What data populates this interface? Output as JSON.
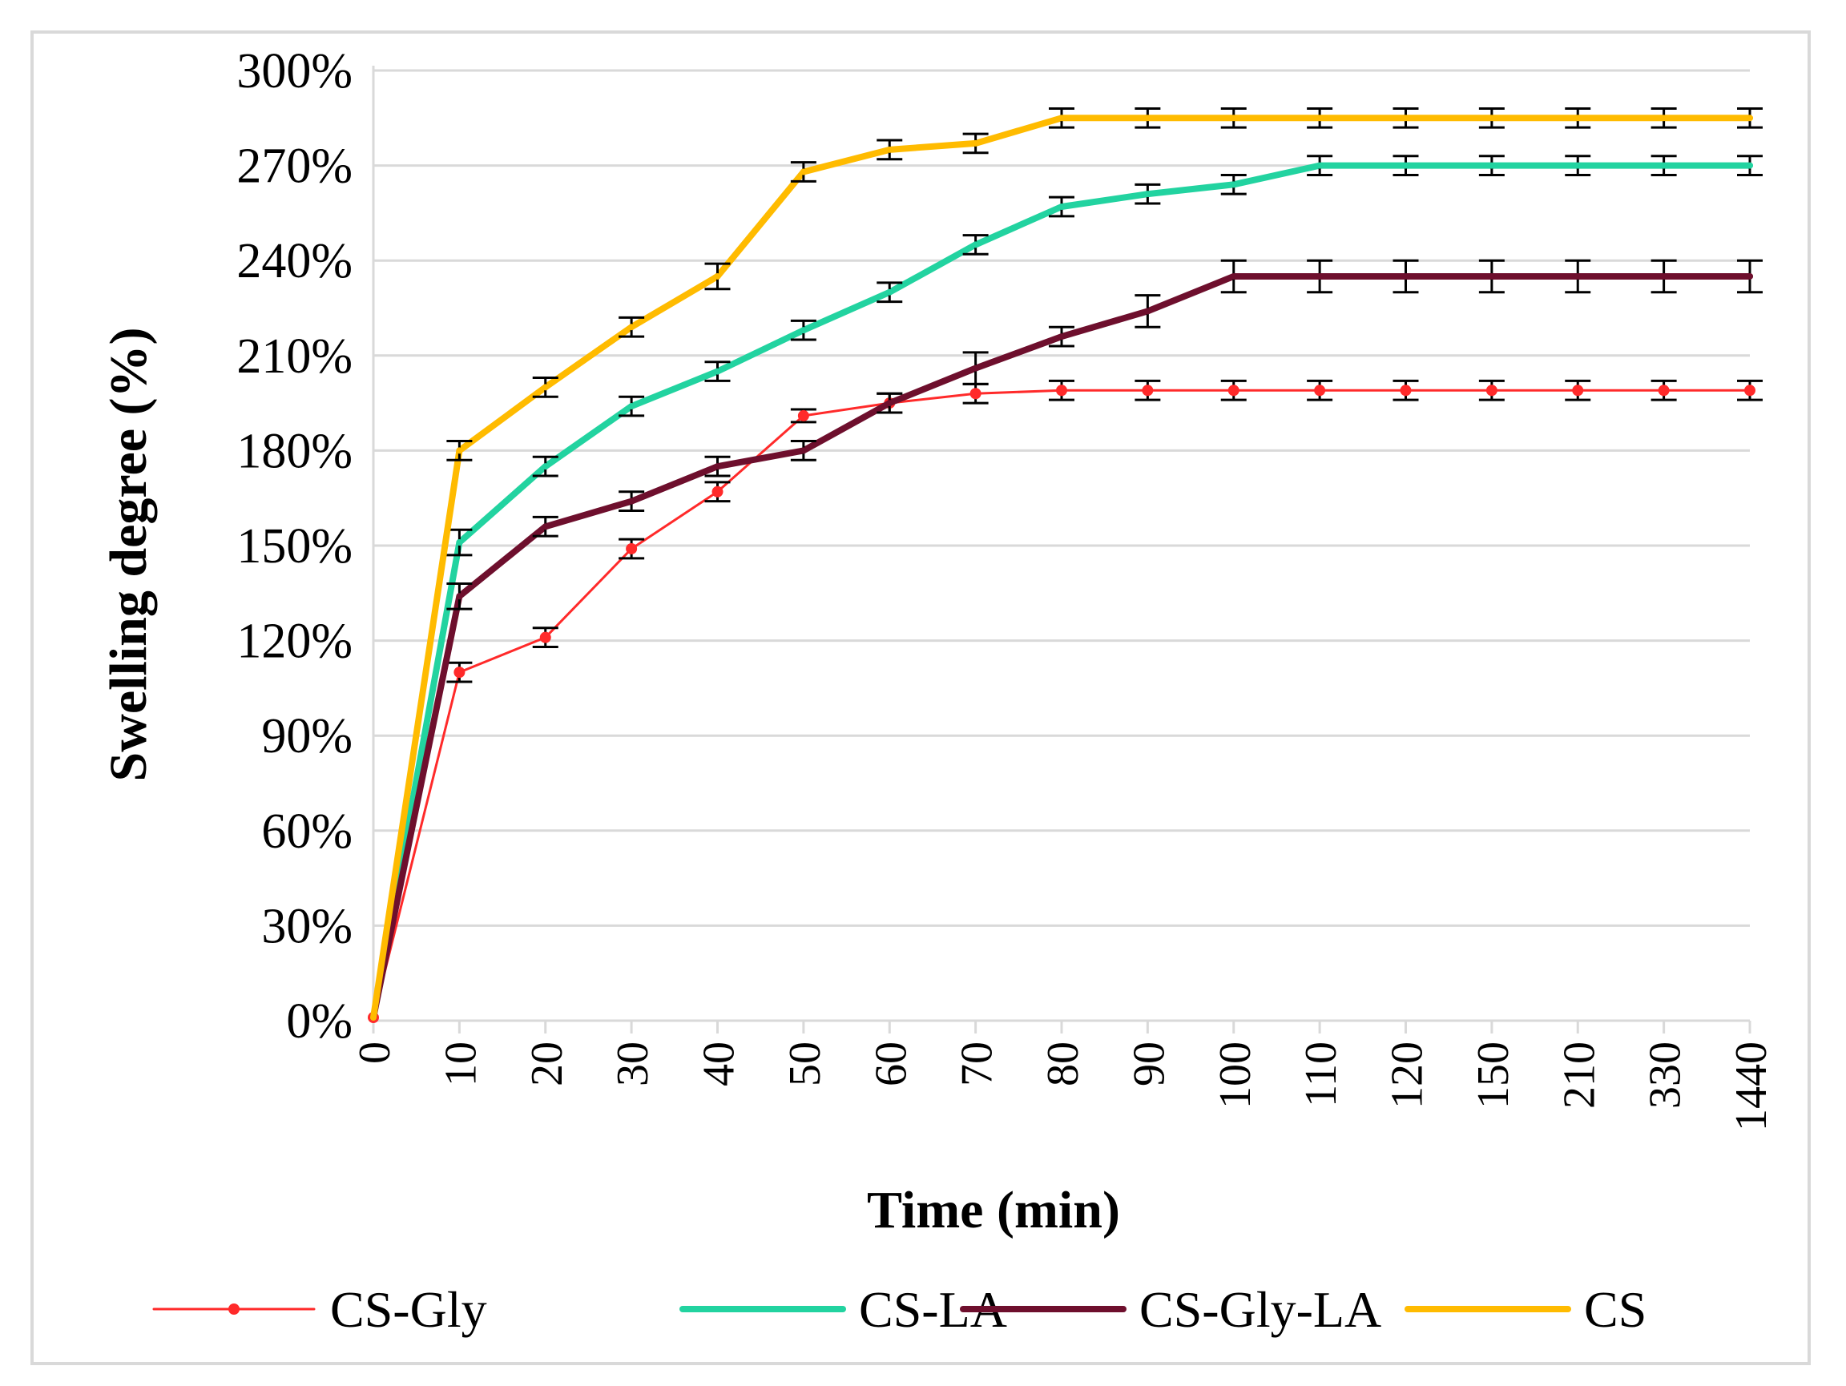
{
  "chart_data": {
    "type": "line",
    "title": "",
    "xlabel": "Time (min)",
    "ylabel": "Swelling degree (%)",
    "ylim": [
      0,
      300
    ],
    "yticks": [
      "0%",
      "30%",
      "60%",
      "90%",
      "120%",
      "150%",
      "180%",
      "210%",
      "240%",
      "270%",
      "300%"
    ],
    "categories": [
      "0",
      "10",
      "20",
      "30",
      "40",
      "50",
      "60",
      "70",
      "80",
      "90",
      "100",
      "110",
      "120",
      "150",
      "210",
      "330",
      "1440"
    ],
    "grid": true,
    "legend_position": "bottom",
    "series": [
      {
        "name": "CS-Gly",
        "color": "#ff2a2a",
        "width": "thin",
        "marker": "dot",
        "values": [
          1,
          110,
          121,
          149,
          167,
          191,
          195,
          198,
          199,
          199,
          199,
          199,
          199,
          199,
          199,
          199,
          199
        ],
        "errors": [
          0,
          3,
          3,
          3,
          3,
          2,
          3,
          3,
          3,
          3,
          3,
          3,
          3,
          3,
          3,
          3,
          3
        ]
      },
      {
        "name": "CS-LA",
        "color": "#22d3a0",
        "width": "thick",
        "marker": "none",
        "values": [
          1,
          151,
          175,
          194,
          205,
          218,
          230,
          245,
          257,
          261,
          264,
          270,
          270,
          270,
          270,
          270,
          270
        ],
        "errors": [
          0,
          4,
          3,
          3,
          3,
          3,
          3,
          3,
          3,
          3,
          3,
          3,
          3,
          3,
          3,
          3,
          3
        ]
      },
      {
        "name": "CS-Gly-LA",
        "color": "#6e0f2d",
        "width": "thick",
        "marker": "none",
        "values": [
          1,
          134,
          156,
          164,
          175,
          180,
          195,
          206,
          216,
          224,
          235,
          235,
          235,
          235,
          235,
          235,
          235
        ],
        "errors": [
          0,
          4,
          3,
          3,
          3,
          3,
          3,
          5,
          3,
          5,
          5,
          5,
          5,
          5,
          5,
          5,
          5
        ]
      },
      {
        "name": "CS",
        "color": "#ffbb00",
        "width": "thick",
        "marker": "none",
        "values": [
          1,
          180,
          200,
          219,
          235,
          268,
          275,
          277,
          285,
          285,
          285,
          285,
          285,
          285,
          285,
          285,
          285
        ],
        "errors": [
          0,
          3,
          3,
          3,
          4,
          3,
          3,
          3,
          3,
          3,
          3,
          3,
          3,
          3,
          3,
          3,
          3
        ]
      }
    ]
  }
}
